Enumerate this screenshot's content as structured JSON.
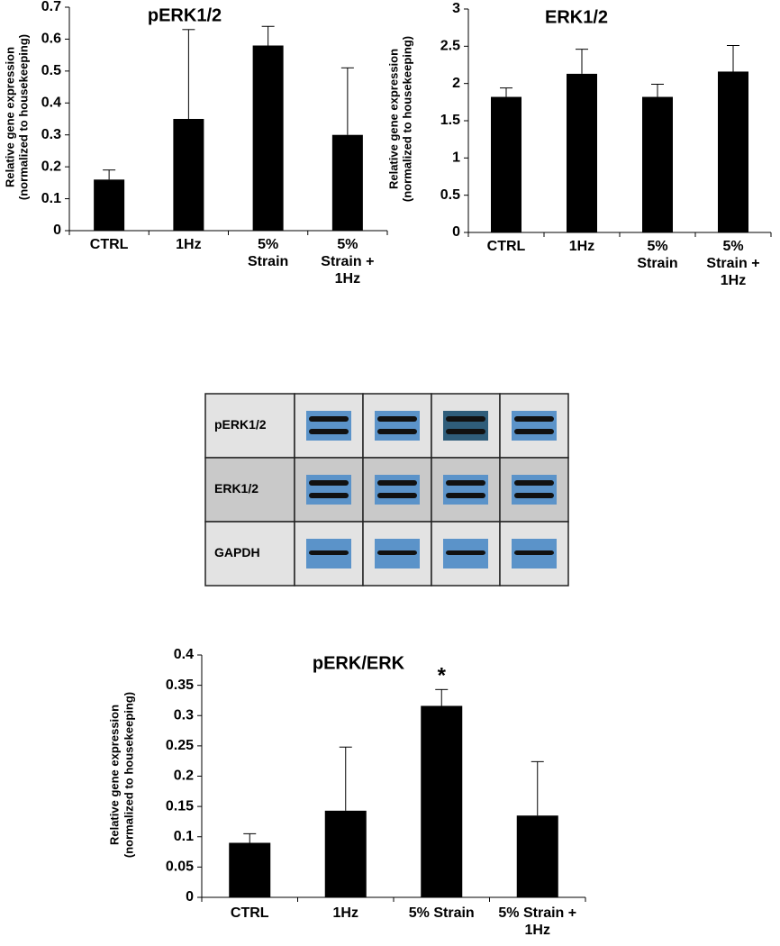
{
  "chart_data": [
    {
      "type": "bar",
      "title": "pERK1/2",
      "ylabel": [
        "Relative gene expression",
        "(normalized to housekeeping)"
      ],
      "categories": [
        "CTRL",
        "1Hz",
        "5% Strain",
        "5% Strain + 1Hz"
      ],
      "values": [
        0.16,
        0.35,
        0.58,
        0.3
      ],
      "errors": [
        0.03,
        0.28,
        0.06,
        0.21
      ],
      "color": "#000000",
      "ylim": [
        0,
        0.7
      ],
      "yticks": [
        0,
        0.1,
        0.2,
        0.3,
        0.4,
        0.5,
        0.6,
        0.7
      ]
    },
    {
      "type": "bar",
      "title": "ERK1/2",
      "ylabel": [
        "Relative gene expression",
        "(normalized to housekeeping)"
      ],
      "categories": [
        "CTRL",
        "1Hz",
        "5% Strain",
        "5% Strain + 1Hz"
      ],
      "values": [
        1.82,
        2.13,
        1.82,
        2.16
      ],
      "errors": [
        0.12,
        0.33,
        0.17,
        0.35
      ],
      "color": "#000000",
      "ylim": [
        0,
        3
      ],
      "yticks": [
        0,
        0.5,
        1,
        1.5,
        2,
        2.5,
        3
      ]
    },
    {
      "type": "bar",
      "title": "pERK/ERK",
      "ylabel": [
        "Relative gene expression",
        "(normalized to housekeeping)"
      ],
      "categories": [
        "CTRL",
        "1Hz",
        "5% Strain",
        "5% Strain + 1Hz"
      ],
      "values": [
        0.09,
        0.143,
        0.316,
        0.135
      ],
      "errors": [
        0.015,
        0.105,
        0.027,
        0.089
      ],
      "color": "#000000",
      "annotations": [
        "*"
      ],
      "ylim": [
        0,
        0.4
      ],
      "yticks": [
        0,
        0.05,
        0.1,
        0.15,
        0.2,
        0.25,
        0.3,
        0.35,
        0.4
      ]
    }
  ],
  "blot": {
    "rows": [
      "pERK1/2",
      "ERK1/2",
      "GAPDH"
    ]
  }
}
